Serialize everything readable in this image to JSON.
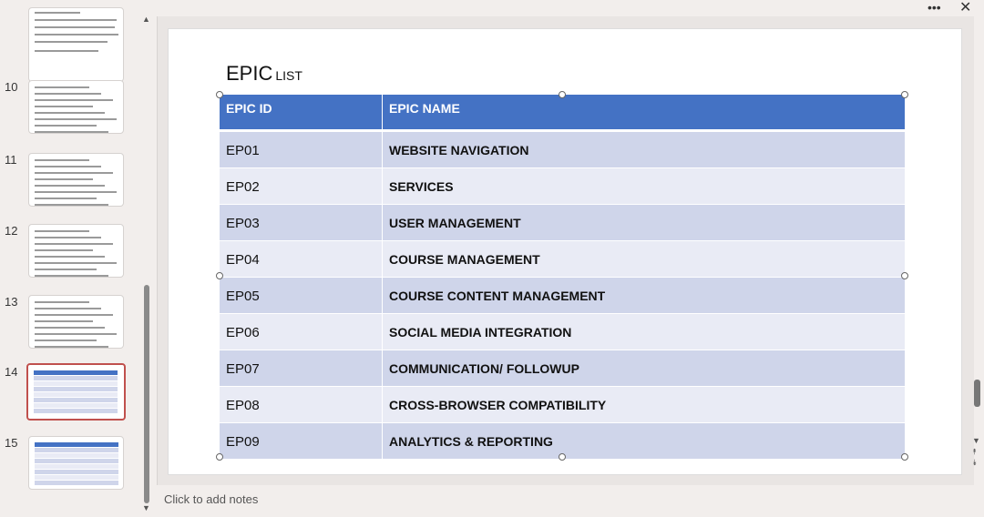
{
  "slide_panel": {
    "slides": [
      {
        "number": "10"
      },
      {
        "number": "11"
      },
      {
        "number": "12"
      },
      {
        "number": "13"
      },
      {
        "number": "14",
        "selected": true
      },
      {
        "number": "15"
      }
    ]
  },
  "slide": {
    "title": "EPIC",
    "title_suffix": "LIST",
    "table": {
      "header": [
        "EPIC ID",
        "EPIC NAME"
      ],
      "rows": [
        [
          "EP01",
          "WEBSITE NAVIGATION"
        ],
        [
          "EP02",
          "SERVICES"
        ],
        [
          "EP03",
          "USER MANAGEMENT"
        ],
        [
          "EP04",
          "COURSE MANAGEMENT"
        ],
        [
          "EP05",
          "COURSE CONTENT MANAGEMENT"
        ],
        [
          "EP06",
          "SOCIAL MEDIA INTEGRATION"
        ],
        [
          "EP07",
          "COMMUNICATION/ FOLLOWUP"
        ],
        [
          "EP08",
          "CROSS-BROWSER COMPATIBILITY"
        ],
        [
          "EP09",
          "ANALYTICS & REPORTING"
        ]
      ]
    }
  },
  "notes": {
    "placeholder": "Click to add notes"
  }
}
